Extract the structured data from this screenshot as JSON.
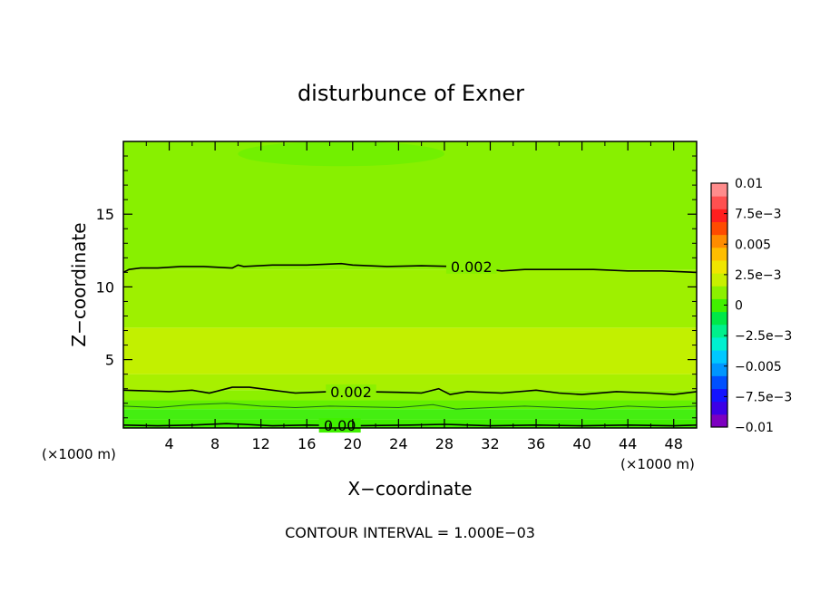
{
  "chart_data": {
    "type": "heatmap",
    "title": "disturbunce of Exner",
    "xlabel": "X−coordinate",
    "ylabel": "Z−coordinate",
    "x_unit_left": "(×1000 m)",
    "x_unit_right": "(×1000 m)",
    "footer": "CONTOUR INTERVAL = 1.000E−03",
    "xlim": [
      0,
      50
    ],
    "ylim": [
      0.3,
      20
    ],
    "x_ticks": [
      4,
      8,
      12,
      16,
      20,
      24,
      28,
      32,
      36,
      40,
      44,
      48
    ],
    "y_ticks": [
      5,
      10,
      15
    ],
    "colorbar": {
      "labels": [
        {
          "value": 0.01,
          "text": "0.01"
        },
        {
          "value": 0.0075,
          "text": "7.5e−3"
        },
        {
          "value": 0.005,
          "text": "0.005"
        },
        {
          "value": 0.0025,
          "text": "2.5e−3"
        },
        {
          "value": 0,
          "text": "0"
        },
        {
          "value": -0.0025,
          "text": "−2.5e−3"
        },
        {
          "value": -0.005,
          "text": "−0.005"
        },
        {
          "value": -0.0075,
          "text": "−7.5e−3"
        },
        {
          "value": -0.01,
          "text": "−0.01"
        }
      ],
      "colors": [
        "#7d00c0",
        "#3c00e6",
        "#1414ff",
        "#0050ff",
        "#0096ff",
        "#00c8ff",
        "#00f0d0",
        "#00f08c",
        "#00e848",
        "#41f000",
        "#8cf000",
        "#c8f000",
        "#f0e600",
        "#ffbe00",
        "#ff8c00",
        "#ff4b00",
        "#ff1e1e",
        "#ff5050",
        "#ff8c8c"
      ]
    },
    "bands": [
      {
        "z0": 0.3,
        "z1": 0.9,
        "value": 0.0005,
        "color": "#41f000"
      },
      {
        "z0": 0.9,
        "z1": 1.6,
        "value": 0.001,
        "color": "#44ee11"
      },
      {
        "z0": 1.6,
        "z1": 2.2,
        "value": 0.0015,
        "color": "#66f000"
      },
      {
        "z0": 2.2,
        "z1": 2.9,
        "value": 0.002,
        "color": "#8cf000"
      },
      {
        "z0": 2.9,
        "z1": 4.0,
        "value": 0.0025,
        "color": "#a8f000"
      },
      {
        "z0": 4.0,
        "z1": 7.2,
        "value": 0.003,
        "color": "#c2f000"
      },
      {
        "z0": 7.2,
        "z1": 11.2,
        "value": 0.0025,
        "color": "#9ef000"
      },
      {
        "z0": 11.2,
        "z1": 20,
        "value": 0.0015,
        "color": "#88f000"
      }
    ],
    "patch": {
      "x": [
        10,
        28
      ],
      "z": [
        18.3,
        20
      ],
      "color": "#6df000"
    },
    "contours": [
      {
        "level": 0.002,
        "label": "0.002",
        "label_x": 28.4,
        "points": [
          [
            0,
            11.0
          ],
          [
            0.5,
            11.2
          ],
          [
            1.5,
            11.3
          ],
          [
            3,
            11.3
          ],
          [
            5,
            11.4
          ],
          [
            7,
            11.4
          ],
          [
            9.5,
            11.3
          ],
          [
            10,
            11.5
          ],
          [
            10.5,
            11.4
          ],
          [
            13,
            11.5
          ],
          [
            16,
            11.5
          ],
          [
            19,
            11.6
          ],
          [
            20,
            11.5
          ],
          [
            23,
            11.4
          ],
          [
            26,
            11.45
          ],
          [
            29,
            11.4
          ],
          [
            31,
            11.3
          ],
          [
            33,
            11.1
          ],
          [
            35,
            11.2
          ],
          [
            38,
            11.2
          ],
          [
            41,
            11.2
          ],
          [
            44,
            11.1
          ],
          [
            47,
            11.1
          ],
          [
            50,
            11.0
          ]
        ]
      },
      {
        "level": 0.002,
        "label": "0.002",
        "label_x": 17.9,
        "points": [
          [
            0,
            2.9
          ],
          [
            2,
            2.85
          ],
          [
            4,
            2.8
          ],
          [
            6,
            2.9
          ],
          [
            7.5,
            2.7
          ],
          [
            9.5,
            3.1
          ],
          [
            11,
            3.1
          ],
          [
            13,
            2.9
          ],
          [
            15,
            2.7
          ],
          [
            18,
            2.8
          ],
          [
            21,
            2.8
          ],
          [
            24,
            2.75
          ],
          [
            26,
            2.7
          ],
          [
            27.5,
            3.0
          ],
          [
            28.5,
            2.6
          ],
          [
            30,
            2.8
          ],
          [
            33,
            2.7
          ],
          [
            36,
            2.9
          ],
          [
            38,
            2.7
          ],
          [
            40,
            2.6
          ],
          [
            43,
            2.8
          ],
          [
            46,
            2.7
          ],
          [
            48,
            2.6
          ],
          [
            50,
            2.8
          ]
        ]
      },
      {
        "level": 0.0,
        "label": "0.00",
        "label_x": 17.3,
        "points": [
          [
            0,
            0.5
          ],
          [
            3,
            0.45
          ],
          [
            6,
            0.5
          ],
          [
            9,
            0.6
          ],
          [
            10.5,
            0.55
          ],
          [
            13,
            0.45
          ],
          [
            16,
            0.5
          ],
          [
            20,
            0.45
          ],
          [
            25,
            0.5
          ],
          [
            28,
            0.55
          ],
          [
            32,
            0.45
          ],
          [
            36,
            0.5
          ],
          [
            40,
            0.45
          ],
          [
            44,
            0.5
          ],
          [
            48,
            0.45
          ],
          [
            50,
            0.5
          ]
        ]
      }
    ],
    "thin_lines": [
      {
        "points": [
          [
            0,
            1.8
          ],
          [
            3,
            1.7
          ],
          [
            6,
            1.9
          ],
          [
            9,
            2.0
          ],
          [
            12,
            1.8
          ],
          [
            15,
            1.7
          ],
          [
            18,
            1.8
          ],
          [
            21,
            1.75
          ],
          [
            24,
            1.7
          ],
          [
            27,
            1.9
          ],
          [
            29,
            1.6
          ],
          [
            32,
            1.7
          ],
          [
            35,
            1.8
          ],
          [
            38,
            1.7
          ],
          [
            41,
            1.6
          ],
          [
            44,
            1.8
          ],
          [
            47,
            1.7
          ],
          [
            50,
            1.8
          ]
        ]
      }
    ]
  }
}
